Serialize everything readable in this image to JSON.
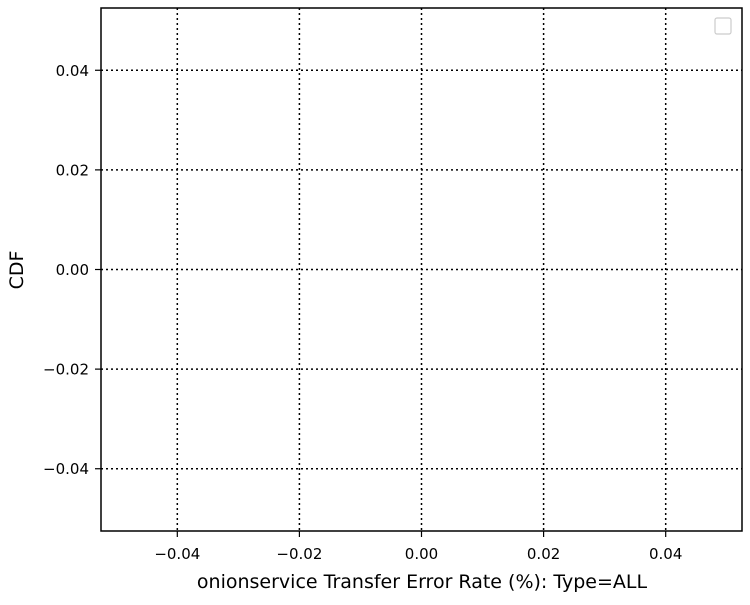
{
  "chart_data": {
    "type": "line",
    "title": "",
    "xlabel": "onionservice Transfer Error Rate (%): Type=ALL",
    "ylabel": "CDF",
    "xlim": [
      -0.0525,
      0.0525
    ],
    "ylim": [
      -0.0525,
      0.0525
    ],
    "x_ticks": [
      -0.04,
      -0.02,
      0.0,
      0.02,
      0.04
    ],
    "x_tick_labels": [
      "−0.04",
      "−0.02",
      "0.00",
      "0.02",
      "0.04"
    ],
    "y_ticks": [
      -0.04,
      -0.02,
      0.0,
      0.02,
      0.04
    ],
    "y_tick_labels": [
      "−0.04",
      "−0.02",
      "0.00",
      "0.02",
      "0.04"
    ],
    "grid": true,
    "grid_style": "dotted",
    "legend": "top-right",
    "legend_entries": [],
    "series": [],
    "colors": {
      "axes": "#000000",
      "grid": "#000000",
      "legend_border": "#cccccc"
    }
  }
}
